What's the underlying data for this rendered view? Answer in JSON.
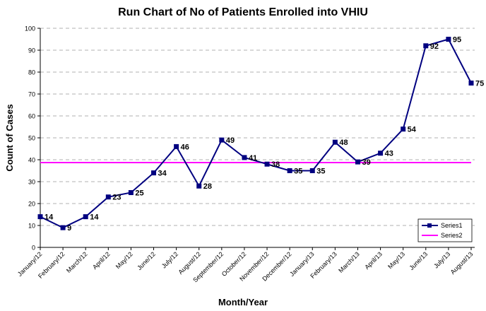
{
  "chart_data": {
    "type": "line",
    "title": "Run Chart of No of Patients Enrolled into VHIU",
    "x_label": "Month/Year",
    "y_label": "Count of Cases",
    "categories": [
      "January/12",
      "February/12",
      "March/12",
      "April/12",
      "May/12",
      "June/12",
      "July/12",
      "August/12",
      "September/12",
      "October/12",
      "November/12",
      "December/12",
      "January/13",
      "February/13",
      "March/13",
      "April/13",
      "May/13",
      "June/13",
      "July/13",
      "August/13"
    ],
    "series": [
      {
        "name": "Series1",
        "color": "#000080",
        "markers": true,
        "data_labels": true,
        "values": [
          14,
          9,
          14,
          23,
          25,
          34,
          46,
          28,
          49,
          41,
          38,
          35,
          35,
          48,
          39,
          43,
          54,
          92,
          95,
          75
        ]
      },
      {
        "name": "Series2",
        "color": "#ff00ff",
        "markers": false,
        "data_labels": false,
        "values": [
          38.7,
          38.7,
          38.7,
          38.7,
          38.7,
          38.7,
          38.7,
          38.7,
          38.7,
          38.7,
          38.7,
          38.7,
          38.7,
          38.7,
          38.7,
          38.7,
          38.7,
          38.7,
          38.7,
          38.7
        ]
      }
    ],
    "ylim": [
      0,
      100
    ],
    "yticks": [
      0,
      10,
      20,
      30,
      40,
      50,
      60,
      70,
      80,
      90,
      100
    ],
    "grid": true,
    "legend": "lower right"
  }
}
